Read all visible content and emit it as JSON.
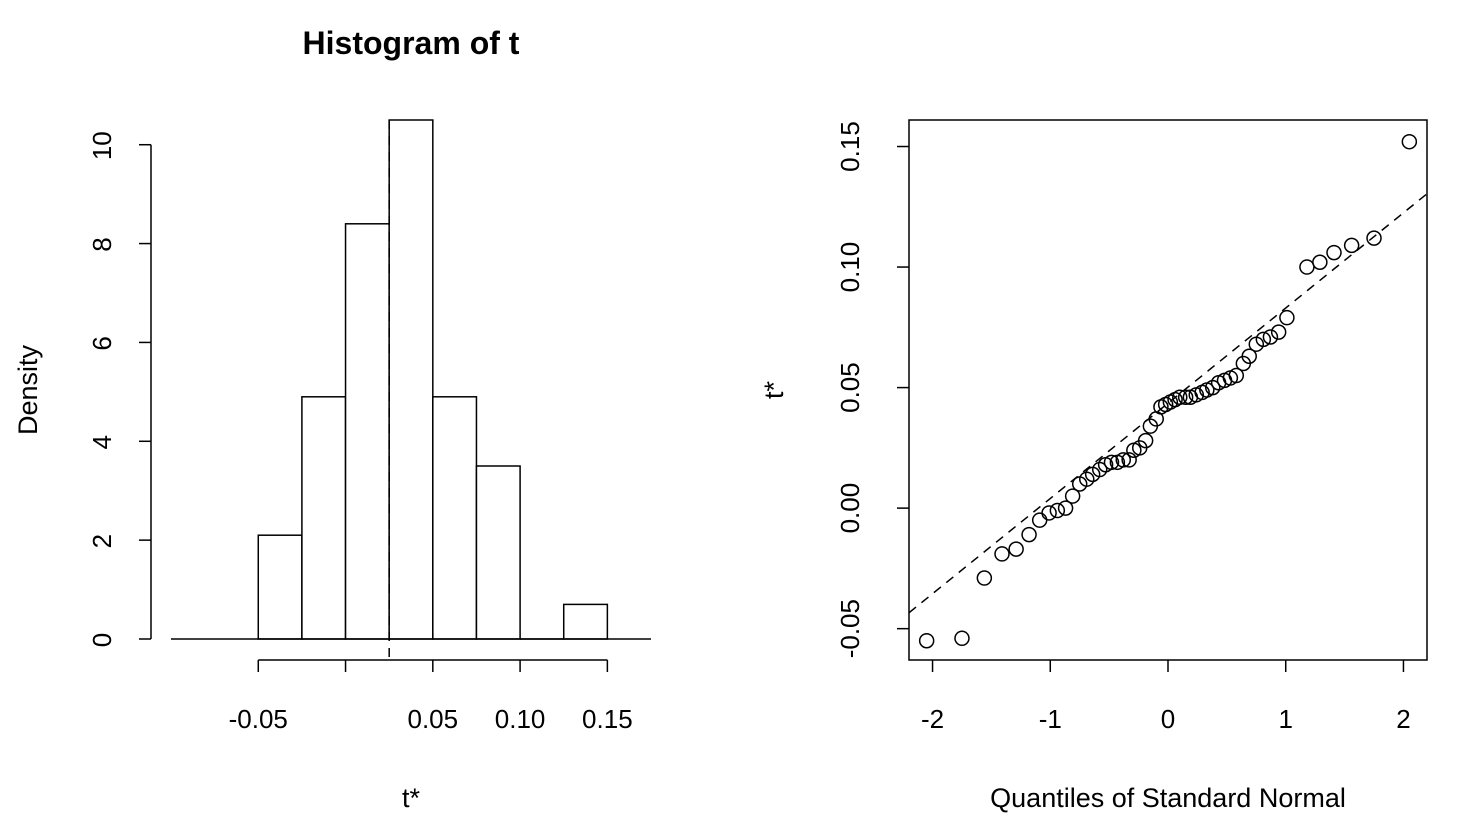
{
  "chart_data": [
    {
      "type": "bar",
      "title": "Histogram of t",
      "xlabel": "t*",
      "ylabel": "Density",
      "xlim": [
        -0.1,
        0.175
      ],
      "ylim": [
        0,
        10.5
      ],
      "yticks": [
        0,
        2,
        4,
        6,
        8,
        10
      ],
      "xticks": [
        -0.05,
        0,
        0.05,
        0.1,
        0.15
      ],
      "xtick_labels": [
        "-0.05",
        "",
        "0.05",
        "0.10",
        "0.15"
      ],
      "bins": [
        {
          "x0": -0.05,
          "x1": -0.025,
          "density": 2.1
        },
        {
          "x0": -0.025,
          "x1": 0.0,
          "density": 4.9
        },
        {
          "x0": 0.0,
          "x1": 0.025,
          "density": 8.4
        },
        {
          "x0": 0.025,
          "x1": 0.05,
          "density": 10.5
        },
        {
          "x0": 0.05,
          "x1": 0.075,
          "density": 4.9
        },
        {
          "x0": 0.075,
          "x1": 0.1,
          "density": 3.5
        },
        {
          "x0": 0.1,
          "x1": 0.125,
          "density": 0.0
        },
        {
          "x0": 0.125,
          "x1": 0.15,
          "density": 0.7
        }
      ],
      "reference_line_x": 0.025
    },
    {
      "type": "scatter",
      "title": "",
      "xlabel": "Quantiles of Standard Normal",
      "ylabel": "t*",
      "xlim": [
        -2.2,
        2.2
      ],
      "ylim": [
        -0.063,
        0.161
      ],
      "xticks": [
        -2,
        -1,
        0,
        1,
        2
      ],
      "xtick_labels": [
        "-2",
        "-1",
        "0",
        "1",
        "2"
      ],
      "yticks": [
        -0.05,
        0,
        0.05,
        0.1,
        0.15
      ],
      "ytick_labels": [
        "-0.05",
        "0.00",
        "0.05",
        "0.10",
        "0.15"
      ],
      "points": [
        [
          -2.05,
          -0.055
        ],
        [
          -1.75,
          -0.054
        ],
        [
          -1.56,
          -0.029
        ],
        [
          -1.41,
          -0.019
        ],
        [
          -1.29,
          -0.017
        ],
        [
          -1.18,
          -0.011
        ],
        [
          -1.09,
          -0.005
        ],
        [
          -1.01,
          -0.002
        ],
        [
          -0.94,
          -0.001
        ],
        [
          -0.87,
          0.0
        ],
        [
          -0.81,
          0.005
        ],
        [
          -0.75,
          0.01
        ],
        [
          -0.69,
          0.012
        ],
        [
          -0.64,
          0.014
        ],
        [
          -0.58,
          0.016
        ],
        [
          -0.53,
          0.018
        ],
        [
          -0.48,
          0.019
        ],
        [
          -0.43,
          0.019
        ],
        [
          -0.38,
          0.02
        ],
        [
          -0.33,
          0.02
        ],
        [
          -0.29,
          0.024
        ],
        [
          -0.24,
          0.025
        ],
        [
          -0.19,
          0.028
        ],
        [
          -0.15,
          0.034
        ],
        [
          -0.1,
          0.037
        ],
        [
          -0.06,
          0.042
        ],
        [
          -0.02,
          0.043
        ],
        [
          0.02,
          0.044
        ],
        [
          0.06,
          0.045
        ],
        [
          0.1,
          0.046
        ],
        [
          0.15,
          0.046
        ],
        [
          0.19,
          0.046
        ],
        [
          0.24,
          0.047
        ],
        [
          0.29,
          0.048
        ],
        [
          0.33,
          0.049
        ],
        [
          0.38,
          0.05
        ],
        [
          0.43,
          0.052
        ],
        [
          0.48,
          0.053
        ],
        [
          0.53,
          0.054
        ],
        [
          0.58,
          0.055
        ],
        [
          0.64,
          0.06
        ],
        [
          0.69,
          0.063
        ],
        [
          0.75,
          0.068
        ],
        [
          0.81,
          0.07
        ],
        [
          0.87,
          0.071
        ],
        [
          0.94,
          0.073
        ],
        [
          1.01,
          0.079
        ],
        [
          1.18,
          0.1
        ],
        [
          1.29,
          0.102
        ],
        [
          1.41,
          0.106
        ],
        [
          1.56,
          0.109
        ],
        [
          1.75,
          0.112
        ],
        [
          2.05,
          0.152
        ]
      ],
      "reference_line": {
        "intercept": 0.0435,
        "slope": 0.0395
      }
    }
  ]
}
